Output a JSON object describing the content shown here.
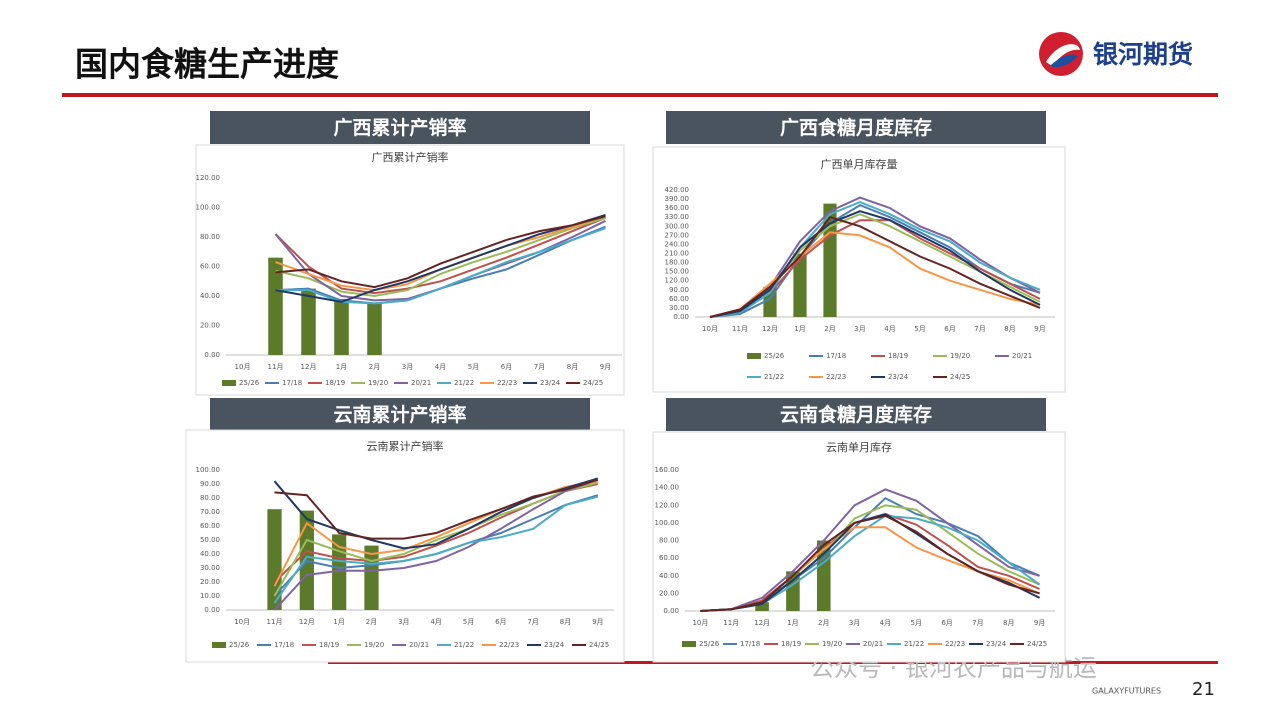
{
  "header": {
    "title": "国内食糖生产进度",
    "logo": "银河期货"
  },
  "footer": {
    "watermark": "公众号 · 银河农产品与航运",
    "brand": "GALAXYFUTURES",
    "page": "21"
  },
  "chart_data": [
    {
      "type": "line",
      "panel_title": "广西累计产销率",
      "title": "广西累计产销率",
      "categories": [
        "10月",
        "11月",
        "12月",
        "1月",
        "2月",
        "3月",
        "4月",
        "5月",
        "6月",
        "7月",
        "8月",
        "9月"
      ],
      "ylim": [
        0,
        120
      ],
      "yticks": [
        {
          "value": 0,
          "label": "0.00"
        },
        {
          "value": 20,
          "label": "20.00"
        },
        {
          "value": 40,
          "label": "40.00"
        },
        {
          "value": 60,
          "label": "60.00"
        },
        {
          "value": 80,
          "label": "80.00"
        },
        {
          "value": 100,
          "label": "100.00"
        },
        {
          "value": 120,
          "label": "120.00"
        }
      ],
      "series": [
        {
          "name": "25/26",
          "type": "bar",
          "color": "#5b7a2a",
          "values": [
            null,
            66,
            45,
            38,
            35,
            null,
            null,
            null,
            null,
            null,
            null,
            null
          ]
        },
        {
          "name": "17/18",
          "color": "#4a7fb5",
          "values": [
            null,
            44,
            45,
            37,
            35,
            37,
            45,
            52,
            58,
            68,
            78,
            87
          ]
        },
        {
          "name": "18/19",
          "color": "#c0504d",
          "values": [
            null,
            82,
            60,
            45,
            42,
            45,
            50,
            58,
            66,
            75,
            84,
            93
          ]
        },
        {
          "name": "19/20",
          "color": "#9bbb59",
          "values": [
            null,
            57,
            52,
            43,
            40,
            44,
            55,
            63,
            70,
            78,
            86,
            93
          ]
        },
        {
          "name": "20/21",
          "color": "#8064a2",
          "values": [
            null,
            82,
            55,
            40,
            37,
            38,
            45,
            54,
            62,
            70,
            80,
            91
          ]
        },
        {
          "name": "21/22",
          "color": "#4bacc6",
          "values": [
            null,
            44,
            44,
            36,
            35,
            37,
            45,
            54,
            63,
            70,
            78,
            86
          ]
        },
        {
          "name": "22/23",
          "color": "#f79646",
          "values": [
            null,
            63,
            55,
            47,
            44,
            48,
            58,
            66,
            74,
            80,
            87,
            94
          ]
        },
        {
          "name": "23/24",
          "color": "#1f3864",
          "values": [
            null,
            44,
            40,
            36,
            44,
            50,
            58,
            66,
            74,
            82,
            88,
            95
          ]
        },
        {
          "name": "24/25",
          "color": "#632523",
          "values": [
            null,
            56,
            58,
            50,
            46,
            52,
            62,
            70,
            78,
            84,
            88,
            94
          ]
        }
      ]
    },
    {
      "type": "line",
      "panel_title": "广西食糖月度库存",
      "title": "广西单月库存量",
      "categories": [
        "10月",
        "11月",
        "12月",
        "1月",
        "2月",
        "3月",
        "4月",
        "5月",
        "6月",
        "7月",
        "8月",
        "9月"
      ],
      "ylim": [
        0,
        420
      ],
      "yticks": [
        {
          "value": 0,
          "label": "0.00"
        },
        {
          "value": 30,
          "label": "30.00"
        },
        {
          "value": 60,
          "label": "60.00"
        },
        {
          "value": 90,
          "label": "90.00"
        },
        {
          "value": 120,
          "label": "120.00"
        },
        {
          "value": 150,
          "label": "150.00"
        },
        {
          "value": 180,
          "label": "180.00"
        },
        {
          "value": 210,
          "label": "210.00"
        },
        {
          "value": 240,
          "label": "240.00"
        },
        {
          "value": 270,
          "label": "270.00"
        },
        {
          "value": 300,
          "label": "300.00"
        },
        {
          "value": 330,
          "label": "330.00"
        },
        {
          "value": 360,
          "label": "360.00"
        },
        {
          "value": 390,
          "label": "390.00"
        },
        {
          "value": 420,
          "label": "420.00"
        }
      ],
      "series": [
        {
          "name": "25/26",
          "type": "bar",
          "color": "#5b7a2a",
          "values": [
            null,
            null,
            100,
            210,
            375,
            null,
            null,
            null,
            null,
            null,
            null,
            null
          ]
        },
        {
          "name": "17/18",
          "color": "#4a7fb5",
          "values": [
            0,
            10,
            60,
            200,
            310,
            370,
            330,
            280,
            230,
            160,
            110,
            80
          ]
        },
        {
          "name": "18/19",
          "color": "#c0504d",
          "values": [
            0,
            15,
            80,
            190,
            270,
            320,
            320,
            260,
            210,
            160,
            110,
            60
          ]
        },
        {
          "name": "19/20",
          "color": "#9bbb59",
          "values": [
            0,
            20,
            90,
            220,
            300,
            340,
            300,
            250,
            200,
            150,
            100,
            50
          ]
        },
        {
          "name": "20/21",
          "color": "#8064a2",
          "values": [
            0,
            20,
            100,
            250,
            350,
            395,
            360,
            300,
            260,
            190,
            130,
            80
          ]
        },
        {
          "name": "21/22",
          "color": "#4bacc6",
          "values": [
            0,
            15,
            80,
            230,
            340,
            380,
            340,
            290,
            250,
            180,
            130,
            90
          ]
        },
        {
          "name": "22/23",
          "color": "#f79646",
          "values": [
            0,
            25,
            110,
            200,
            280,
            270,
            230,
            160,
            120,
            90,
            60,
            40
          ]
        },
        {
          "name": "23/24",
          "color": "#1f3864",
          "values": [
            0,
            20,
            90,
            230,
            310,
            350,
            320,
            270,
            220,
            150,
            90,
            40
          ]
        },
        {
          "name": "24/25",
          "color": "#632523",
          "values": [
            0,
            25,
            100,
            200,
            330,
            300,
            250,
            200,
            160,
            110,
            70,
            30
          ]
        }
      ]
    },
    {
      "type": "line",
      "panel_title": "云南累计产销率",
      "title": "云南累计产销率",
      "categories": [
        "10月",
        "11月",
        "12月",
        "1月",
        "2月",
        "3月",
        "4月",
        "5月",
        "6月",
        "7月",
        "8月",
        "9月"
      ],
      "ylim": [
        0,
        100
      ],
      "yticks": [
        {
          "value": 0,
          "label": "0.00"
        },
        {
          "value": 10,
          "label": "10.00"
        },
        {
          "value": 20,
          "label": "20.00"
        },
        {
          "value": 30,
          "label": "30.00"
        },
        {
          "value": 40,
          "label": "40.00"
        },
        {
          "value": 50,
          "label": "50.00"
        },
        {
          "value": 60,
          "label": "60.00"
        },
        {
          "value": 70,
          "label": "70.00"
        },
        {
          "value": 80,
          "label": "80.00"
        },
        {
          "value": 90,
          "label": "90.00"
        },
        {
          "value": 100,
          "label": "100.00"
        }
      ],
      "series": [
        {
          "name": "25/26",
          "type": "bar",
          "color": "#5b7a2a",
          "values": [
            null,
            72,
            71,
            54,
            46,
            null,
            null,
            null,
            null,
            null,
            null,
            null
          ]
        },
        {
          "name": "17/18",
          "color": "#4a7fb5",
          "values": [
            null,
            10,
            35,
            30,
            32,
            35,
            40,
            48,
            55,
            65,
            75,
            82
          ]
        },
        {
          "name": "18/19",
          "color": "#c0504d",
          "values": [
            null,
            20,
            42,
            37,
            35,
            38,
            46,
            55,
            66,
            76,
            85,
            90
          ]
        },
        {
          "name": "19/20",
          "color": "#9bbb59",
          "values": [
            null,
            10,
            50,
            42,
            35,
            40,
            50,
            58,
            68,
            76,
            85,
            91
          ]
        },
        {
          "name": "20/21",
          "color": "#8064a2",
          "values": [
            null,
            0,
            25,
            28,
            28,
            30,
            35,
            45,
            58,
            72,
            85,
            93
          ]
        },
        {
          "name": "21/22",
          "color": "#4bacc6",
          "values": [
            null,
            5,
            38,
            35,
            33,
            35,
            40,
            48,
            52,
            58,
            75,
            81
          ]
        },
        {
          "name": "22/23",
          "color": "#f79646",
          "values": [
            null,
            17,
            62,
            45,
            40,
            43,
            52,
            62,
            72,
            80,
            88,
            92
          ]
        },
        {
          "name": "23/24",
          "color": "#1f3864",
          "values": [
            null,
            92,
            65,
            57,
            50,
            44,
            47,
            58,
            70,
            80,
            87,
            94
          ]
        },
        {
          "name": "24/25",
          "color": "#632523",
          "values": [
            null,
            84,
            82,
            55,
            51,
            51,
            55,
            64,
            72,
            81,
            86,
            93
          ]
        }
      ]
    },
    {
      "type": "line",
      "panel_title": "云南食糖月度库存",
      "title": "云南单月库存",
      "categories": [
        "10月",
        "11月",
        "12月",
        "1月",
        "2月",
        "3月",
        "4月",
        "5月",
        "6月",
        "7月",
        "8月",
        "9月"
      ],
      "ylim": [
        0,
        160
      ],
      "yticks": [
        {
          "value": 0,
          "label": "0.00"
        },
        {
          "value": 20,
          "label": "20.00"
        },
        {
          "value": 40,
          "label": "40.00"
        },
        {
          "value": 60,
          "label": "60.00"
        },
        {
          "value": 80,
          "label": "80.00"
        },
        {
          "value": 100,
          "label": "100.00"
        },
        {
          "value": 120,
          "label": "120.00"
        },
        {
          "value": 140,
          "label": "140.00"
        },
        {
          "value": 160,
          "label": "160.00"
        }
      ],
      "series": [
        {
          "name": "25/26",
          "type": "bar",
          "color": "#5b7a2a",
          "values": [
            null,
            null,
            10,
            45,
            80,
            null,
            null,
            null,
            null,
            null,
            null,
            null
          ]
        },
        {
          "name": "17/18",
          "color": "#4a7fb5",
          "values": [
            0,
            2,
            10,
            35,
            60,
            95,
            128,
            110,
            100,
            85,
            55,
            40
          ]
        },
        {
          "name": "18/19",
          "color": "#c0504d",
          "values": [
            0,
            2,
            12,
            40,
            70,
            100,
            110,
            98,
            75,
            50,
            40,
            25
          ]
        },
        {
          "name": "19/20",
          "color": "#9bbb59",
          "values": [
            0,
            2,
            8,
            35,
            65,
            105,
            120,
            115,
            90,
            65,
            45,
            30
          ]
        },
        {
          "name": "20/21",
          "color": "#8064a2",
          "values": [
            0,
            2,
            15,
            45,
            80,
            120,
            138,
            125,
            100,
            75,
            50,
            40
          ]
        },
        {
          "name": "21/22",
          "color": "#4bacc6",
          "values": [
            0,
            2,
            8,
            30,
            55,
            85,
            108,
            105,
            95,
            80,
            55,
            30
          ]
        },
        {
          "name": "22/23",
          "color": "#f79646",
          "values": [
            0,
            2,
            10,
            40,
            70,
            95,
            95,
            72,
            58,
            45,
            35,
            20
          ]
        },
        {
          "name": "23/24",
          "color": "#1f3864",
          "values": [
            0,
            2,
            8,
            35,
            65,
            100,
            110,
            88,
            65,
            45,
            32,
            15
          ]
        },
        {
          "name": "24/25",
          "color": "#632523",
          "values": [
            0,
            2,
            10,
            40,
            75,
            100,
            108,
            90,
            65,
            45,
            30,
            20
          ]
        }
      ]
    }
  ]
}
